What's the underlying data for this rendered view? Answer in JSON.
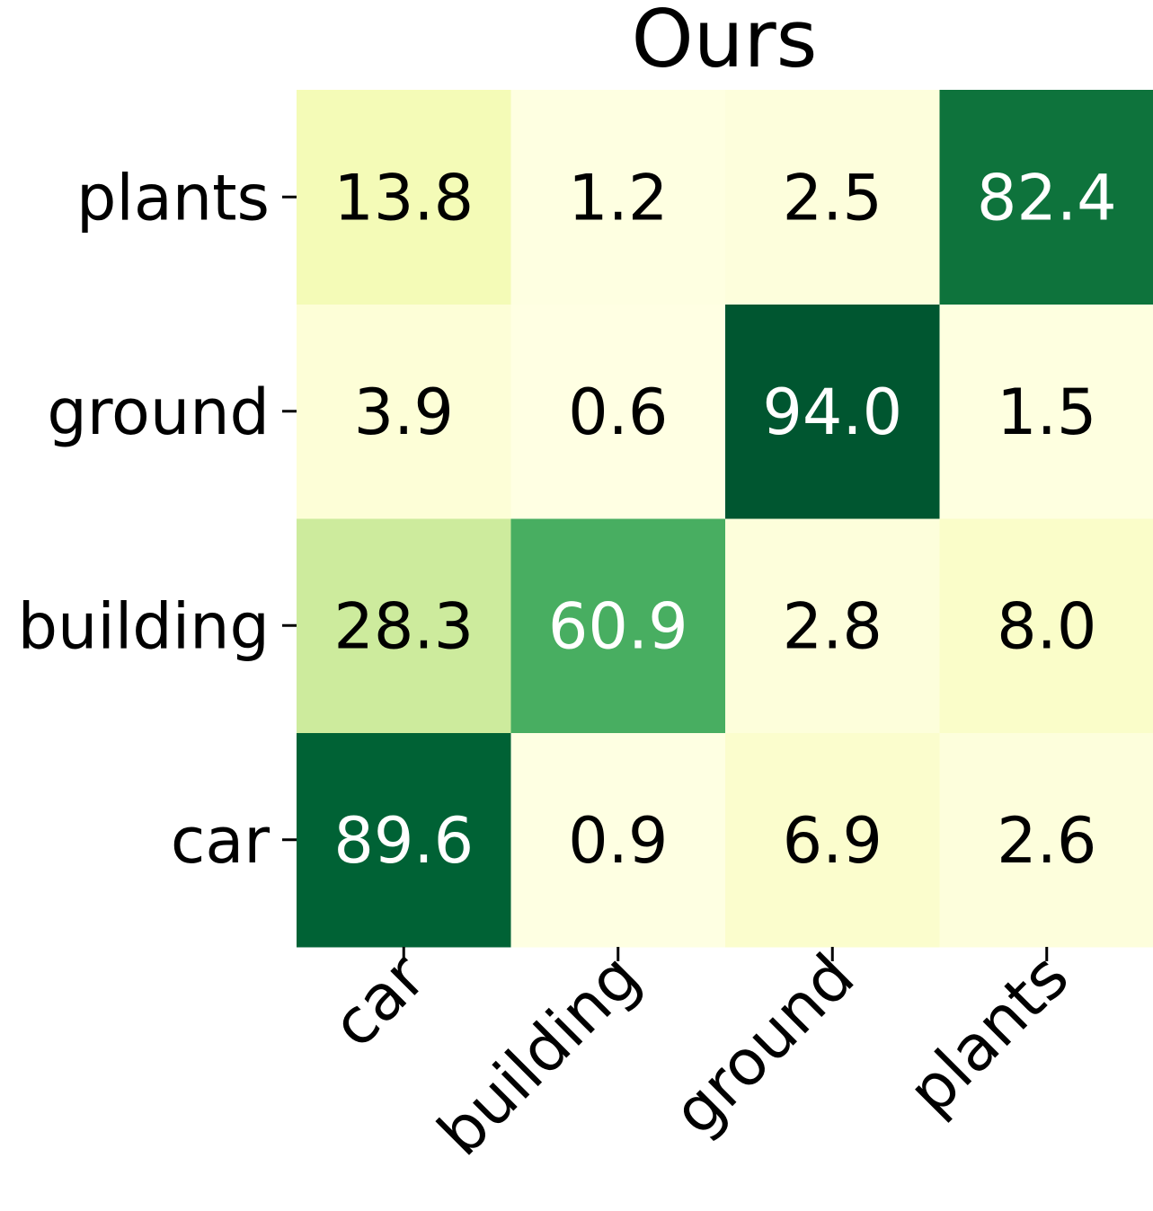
{
  "chart_data": {
    "type": "heatmap",
    "title": "Ours",
    "xlabel": "",
    "ylabel": "",
    "x_categories": [
      "car",
      "building",
      "ground",
      "plants"
    ],
    "y_categories": [
      "car",
      "building",
      "ground",
      "plants"
    ],
    "y_order_top_to_bottom": [
      "plants",
      "ground",
      "building",
      "car"
    ],
    "values": [
      [
        89.6,
        0.9,
        6.9,
        2.6
      ],
      [
        28.3,
        60.9,
        2.8,
        8.0
      ],
      [
        3.9,
        0.6,
        94.0,
        1.5
      ],
      [
        13.8,
        1.2,
        2.5,
        82.4
      ]
    ],
    "value_range": [
      0,
      100
    ],
    "colormap": "YlGn",
    "grid": false,
    "colorbar": false,
    "colors": {
      "text_dark": "#000000",
      "text_light": "#ffffff"
    }
  }
}
